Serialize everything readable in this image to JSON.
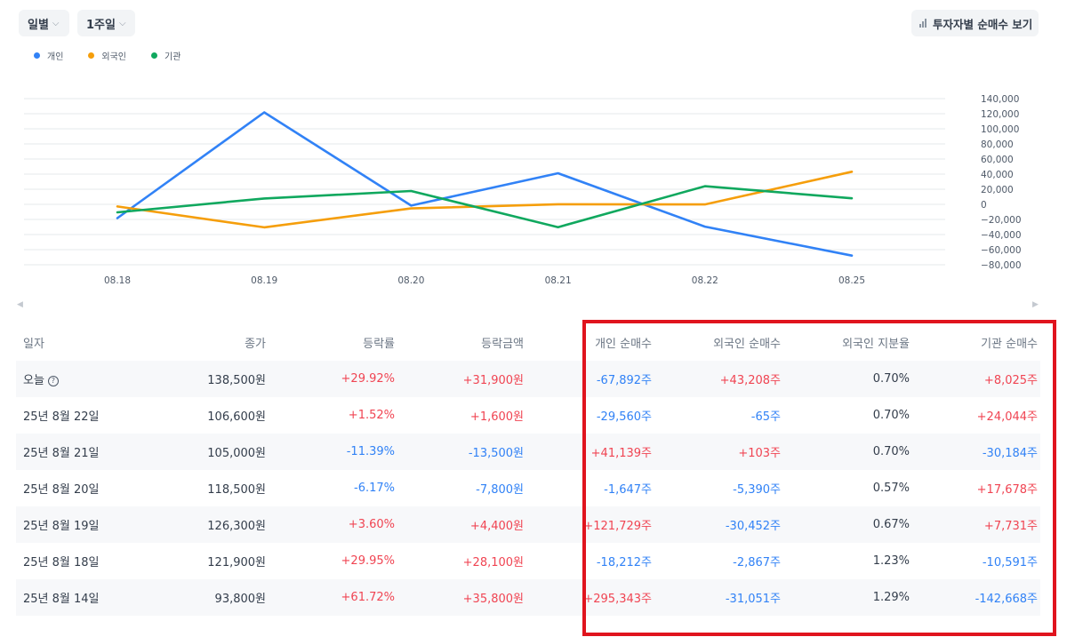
{
  "toolbar": {
    "period_label": "일별",
    "range_label": "1주일",
    "investor_button_label": "투자자별 순매수 보기",
    "chevron_glyph": "⌵"
  },
  "legend": [
    {
      "name": "개인",
      "color": "#3182f6"
    },
    {
      "name": "외국인",
      "color": "#f59e0b"
    },
    {
      "name": "기관",
      "color": "#10a85e"
    }
  ],
  "chart_data": {
    "type": "line",
    "x": [
      "08.18",
      "08.19",
      "08.20",
      "08.21",
      "08.22",
      "08.25"
    ],
    "y_ticks": [
      "140,000",
      "120,000",
      "100,000",
      "80,000",
      "60,000",
      "40,000",
      "20,000",
      "0",
      "−20,000",
      "−40,000",
      "−60,000",
      "−80,000"
    ],
    "ylim": [
      -80000,
      140000
    ],
    "grid": true,
    "legend_position": "top-left",
    "series": [
      {
        "name": "개인",
        "color": "#3182f6",
        "values": [
          -18212,
          121729,
          -1647,
          41139,
          -29560,
          -67892
        ]
      },
      {
        "name": "외국인",
        "color": "#f59e0b",
        "values": [
          -2867,
          -30452,
          -5390,
          103,
          -65,
          43208
        ]
      },
      {
        "name": "기관",
        "color": "#10a85e",
        "values": [
          -10591,
          7731,
          17678,
          -30184,
          24044,
          8025
        ]
      }
    ]
  },
  "table": {
    "headers": [
      "일자",
      "종가",
      "등락률",
      "등락금액",
      "개인 순매수",
      "외국인 순매수",
      "외국인 지분율",
      "기관 순매수"
    ],
    "rows": [
      {
        "date": "오늘",
        "close": "138,500원",
        "rate": "+29.92%",
        "amount": "+31,900원",
        "individual": "-67,892주",
        "foreign": "+43,208주",
        "foreign_ratio": "0.70%",
        "institution": "+8,025주"
      },
      {
        "date": "25년 8월 22일",
        "close": "106,600원",
        "rate": "+1.52%",
        "amount": "+1,600원",
        "individual": "-29,560주",
        "foreign": "-65주",
        "foreign_ratio": "0.70%",
        "institution": "+24,044주"
      },
      {
        "date": "25년 8월 21일",
        "close": "105,000원",
        "rate": "-11.39%",
        "amount": "-13,500원",
        "individual": "+41,139주",
        "foreign": "+103주",
        "foreign_ratio": "0.70%",
        "institution": "-30,184주"
      },
      {
        "date": "25년 8월 20일",
        "close": "118,500원",
        "rate": "-6.17%",
        "amount": "-7,800원",
        "individual": "-1,647주",
        "foreign": "-5,390주",
        "foreign_ratio": "0.57%",
        "institution": "+17,678주"
      },
      {
        "date": "25년 8월 19일",
        "close": "126,300원",
        "rate": "+3.60%",
        "amount": "+4,400원",
        "individual": "+121,729주",
        "foreign": "-30,452주",
        "foreign_ratio": "0.67%",
        "institution": "+7,731주"
      },
      {
        "date": "25년 8월 18일",
        "close": "121,900원",
        "rate": "+29.95%",
        "amount": "+28,100원",
        "individual": "-18,212주",
        "foreign": "-2,867주",
        "foreign_ratio": "1.23%",
        "institution": "-10,591주"
      },
      {
        "date": "25년 8월 14일",
        "close": "93,800원",
        "rate": "+61.72%",
        "amount": "+35,800원",
        "individual": "+295,343주",
        "foreign": "-31,051주",
        "foreign_ratio": "1.29%",
        "institution": "-142,668주"
      }
    ]
  },
  "colors": {
    "positive": "#f04452",
    "negative": "#3182f6",
    "highlight": "#e0141e"
  }
}
